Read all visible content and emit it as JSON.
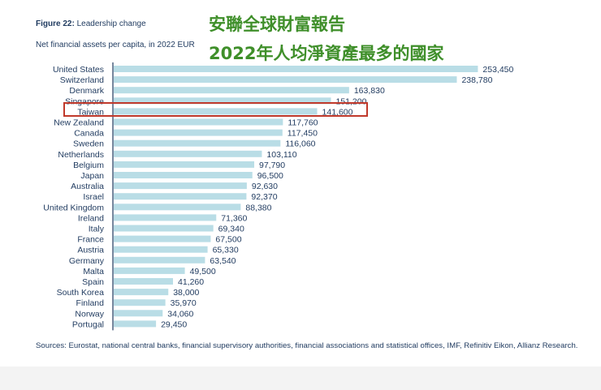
{
  "figure": {
    "label": "Figure 22:",
    "title": "Leadership change",
    "subtitle": "Net financial assets per capita, in 2022 EUR"
  },
  "overlay": {
    "line1": "安聯全球財富報告",
    "line2": "2022年人均淨資產最多的國家"
  },
  "sources": "Sources: Eurostat, national central banks, financial supervisory authorities, financial associations and statistical offices, IMF, Refinitiv Eikon, Allianz Research.",
  "colors": {
    "bar": "#b9dde6",
    "text": "#1f3a5f",
    "highlight": "#c0392b",
    "overlay": "#3f8f2a"
  },
  "chart_data": {
    "type": "bar",
    "orientation": "horizontal",
    "title": "Leadership change",
    "subtitle": "Net financial assets per capita, in 2022 EUR",
    "highlighted_category": "Taiwan",
    "categories": [
      "United States",
      "Switzerland",
      "Denmark",
      "Singapore",
      "Taiwan",
      "New Zealand",
      "Canada",
      "Sweden",
      "Netherlands",
      "Belgium",
      "Japan",
      "Australia",
      "Israel",
      "United Kingdom",
      "Ireland",
      "Italy",
      "France",
      "Austria",
      "Germany",
      "Malta",
      "Spain",
      "South Korea",
      "Finland",
      "Norway",
      "Portugal"
    ],
    "values": [
      253450,
      238780,
      163830,
      151200,
      141600,
      117760,
      117450,
      116060,
      103110,
      97790,
      96500,
      92630,
      92370,
      88380,
      71360,
      69340,
      67500,
      65330,
      63540,
      49500,
      41260,
      38000,
      35970,
      34060,
      29450
    ],
    "value_labels": [
      "253,450",
      "238,780",
      "163,830",
      "151,200",
      "141,600",
      "117,760",
      "117,450",
      "116,060",
      "103,110",
      "97,790",
      "96,500",
      "92,630",
      "92,370",
      "88,380",
      "71,360",
      "69,340",
      "67,500",
      "65,330",
      "63,540",
      "49,500",
      "41,260",
      "38,000",
      "35,970",
      "34,060",
      "29,450"
    ],
    "xlim": [
      0,
      260000
    ]
  }
}
